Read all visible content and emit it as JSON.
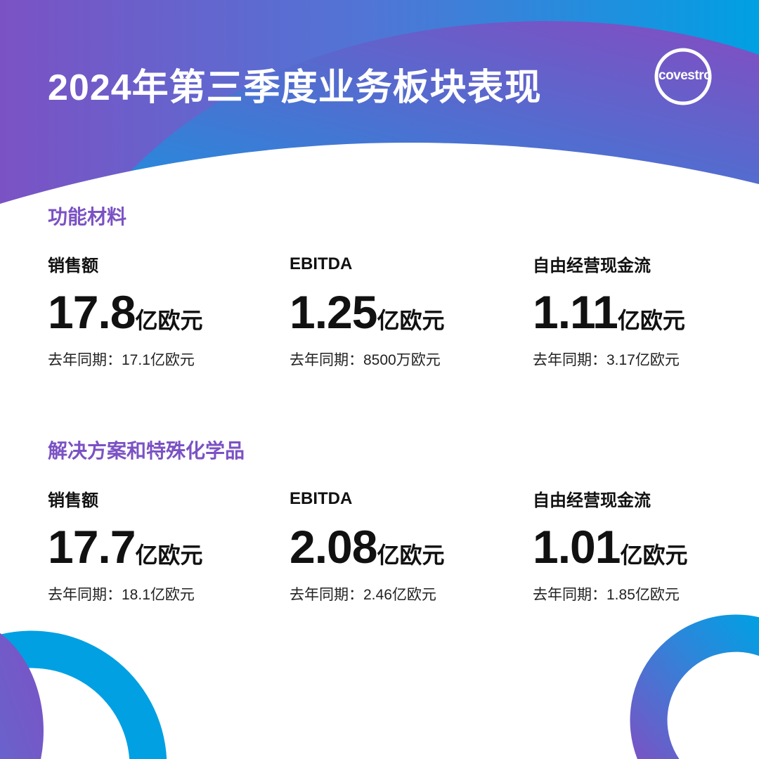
{
  "title": "2024年第三季度业务板块表现",
  "logo": {
    "text": "covestro"
  },
  "colors": {
    "purple": "#7b52c4",
    "cyan": "#009fe3",
    "blue": "#2a8ad8"
  },
  "sections": [
    {
      "name": "功能材料",
      "metrics": [
        {
          "label": "销售额",
          "value": "17.8",
          "unit": "亿欧元",
          "prev": "去年同期：17.1亿欧元"
        },
        {
          "label": "EBITDA",
          "value": "1.25",
          "unit": "亿欧元",
          "prev": "去年同期：8500万欧元"
        },
        {
          "label": "自由经营现金流",
          "value": "1.11",
          "unit": "亿欧元",
          "prev": "去年同期：3.17亿欧元"
        }
      ]
    },
    {
      "name": "解决方案和特殊化学品",
      "metrics": [
        {
          "label": "销售额",
          "value": "17.7",
          "unit": "亿欧元",
          "prev": "去年同期：18.1亿欧元"
        },
        {
          "label": "EBITDA",
          "value": "2.08",
          "unit": "亿欧元",
          "prev": "去年同期：2.46亿欧元"
        },
        {
          "label": "自由经营现金流",
          "value": "1.01",
          "unit": "亿欧元",
          "prev": "去年同期：1.85亿欧元"
        }
      ]
    }
  ]
}
